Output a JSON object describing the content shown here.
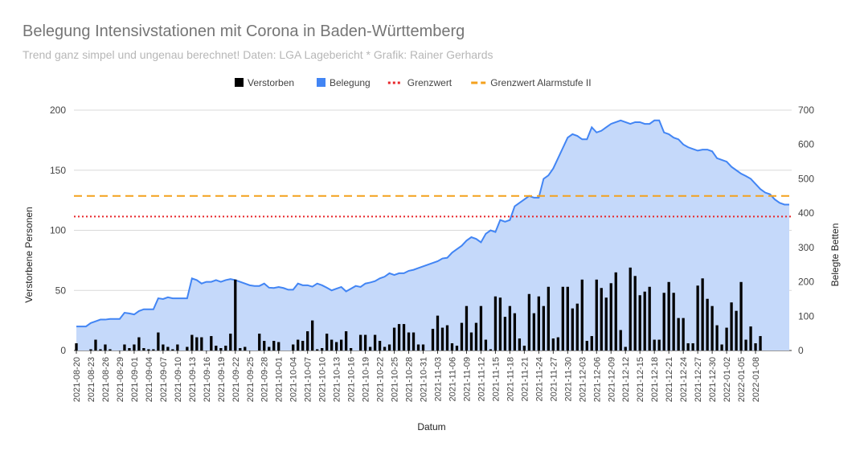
{
  "chart_data": {
    "type": "bar+area",
    "title": "Belegung Intensivstationen mit Corona in Baden-Württemberg",
    "subtitle": "Trend ganz simpel und ungenau berechnet! Daten: LGA Lagebericht * Grafik: Rainer Gerhards",
    "xlabel": "Datum",
    "ylabel_left": "Verstorbene Personen",
    "ylabel_right": "Belegte Betten",
    "ylim_left": [
      0,
      200
    ],
    "ylim_right": [
      0,
      700
    ],
    "yticks_left": [
      0,
      50,
      100,
      150,
      200
    ],
    "yticks_right": [
      0,
      100,
      200,
      300,
      400,
      500,
      600,
      700
    ],
    "grid": true,
    "legend_position": "top",
    "legend": [
      {
        "label": "Verstorben",
        "kind": "square",
        "color": "#000000"
      },
      {
        "label": "Belegung",
        "kind": "square",
        "color": "#4285f4"
      },
      {
        "label": "Grenzwert",
        "kind": "dotted",
        "color": "#e8262a"
      },
      {
        "label": "Grenzwert Alarmstufe II",
        "kind": "dashed",
        "color": "#f4a11d"
      }
    ],
    "x_start": "2021-08-20",
    "x_tick_labels": [
      "2021-08-20",
      "2021-08-23",
      "2021-08-26",
      "2021-08-29",
      "2021-09-01",
      "2021-09-04",
      "2021-09-07",
      "2021-09-10",
      "2021-09-13",
      "2021-09-16",
      "2021-09-19",
      "2021-09-22",
      "2021-09-25",
      "2021-09-28",
      "2021-10-01",
      "2021-10-04",
      "2021-10-07",
      "2021-10-10",
      "2021-10-13",
      "2021-10-16",
      "2021-10-19",
      "2021-10-22",
      "2021-10-25",
      "2021-10-28",
      "2021-10-31",
      "2021-11-03",
      "2021-11-06",
      "2021-11-09",
      "2021-11-12",
      "2021-11-15",
      "2021-11-18",
      "2021-11-21",
      "2021-11-24",
      "2021-11-27",
      "2021-11-30",
      "2021-12-03",
      "2021-12-06",
      "2021-12-09",
      "2021-12-12",
      "2021-12-15",
      "2021-12-18",
      "2021-12-21",
      "2021-12-24",
      "2021-12-27",
      "2021-12-30",
      "2022-01-02",
      "2022-01-05",
      "2022-01-08"
    ],
    "series": [
      {
        "name": "Verstorben",
        "type": "bar",
        "axis": "left",
        "values": [
          6,
          0,
          0,
          1,
          9,
          1,
          5,
          1,
          0,
          0,
          5,
          2,
          5,
          11,
          2,
          1,
          1,
          15,
          5,
          3,
          1,
          5,
          0,
          3,
          13,
          11,
          11,
          0,
          12,
          4,
          2,
          4,
          14,
          59,
          2,
          3,
          0,
          0,
          14,
          8,
          3,
          8,
          7,
          0,
          0,
          5,
          9,
          8,
          16,
          25,
          1,
          2,
          14,
          9,
          7,
          9,
          16,
          2,
          0,
          13,
          13,
          3,
          13,
          8,
          3,
          5,
          19,
          22,
          22,
          15,
          15,
          5,
          5,
          0,
          18,
          29,
          19,
          21,
          6,
          4,
          23,
          37,
          15,
          23,
          37,
          9,
          1,
          45,
          44,
          28,
          37,
          31,
          10,
          4,
          47,
          31,
          45,
          37,
          53,
          10,
          11,
          53,
          53,
          35,
          39,
          59,
          8,
          12,
          59,
          52,
          44,
          56,
          65,
          17,
          3,
          69,
          62,
          46,
          49,
          53,
          9,
          9,
          48,
          57,
          48,
          27,
          27,
          6,
          6,
          54,
          60,
          43,
          37,
          21,
          5,
          19,
          40,
          33,
          57,
          9,
          20,
          6,
          12
        ]
      },
      {
        "name": "Belegung",
        "type": "area",
        "axis": "right",
        "values": [
          70,
          70,
          70,
          80,
          85,
          90,
          90,
          92,
          92,
          92,
          110,
          108,
          105,
          115,
          120,
          120,
          120,
          152,
          150,
          155,
          152,
          152,
          152,
          152,
          210,
          205,
          195,
          200,
          200,
          205,
          200,
          205,
          208,
          205,
          200,
          195,
          190,
          188,
          188,
          195,
          183,
          182,
          185,
          182,
          177,
          177,
          195,
          190,
          190,
          186,
          195,
          190,
          183,
          175,
          180,
          185,
          172,
          180,
          188,
          185,
          195,
          198,
          202,
          210,
          215,
          225,
          220,
          225,
          225,
          232,
          235,
          240,
          245,
          250,
          255,
          260,
          268,
          270,
          285,
          295,
          305,
          320,
          330,
          325,
          315,
          340,
          350,
          345,
          380,
          375,
          380,
          420,
          430,
          440,
          450,
          445,
          445,
          500,
          510,
          530,
          560,
          590,
          620,
          630,
          625,
          615,
          615,
          650,
          635,
          640,
          650,
          660,
          665,
          670,
          665,
          660,
          665,
          665,
          660,
          660,
          670,
          670,
          635,
          630,
          620,
          615,
          600,
          592,
          587,
          582,
          585,
          585,
          580,
          560,
          555,
          550,
          535,
          525,
          515,
          508,
          500,
          485,
          470,
          460,
          455,
          440,
          430,
          425,
          425
        ]
      },
      {
        "name": "Grenzwert",
        "type": "line",
        "axis": "right",
        "value": 390
      },
      {
        "name": "Grenzwert Alarmstufe II",
        "type": "line",
        "axis": "right",
        "value": 450
      }
    ]
  }
}
